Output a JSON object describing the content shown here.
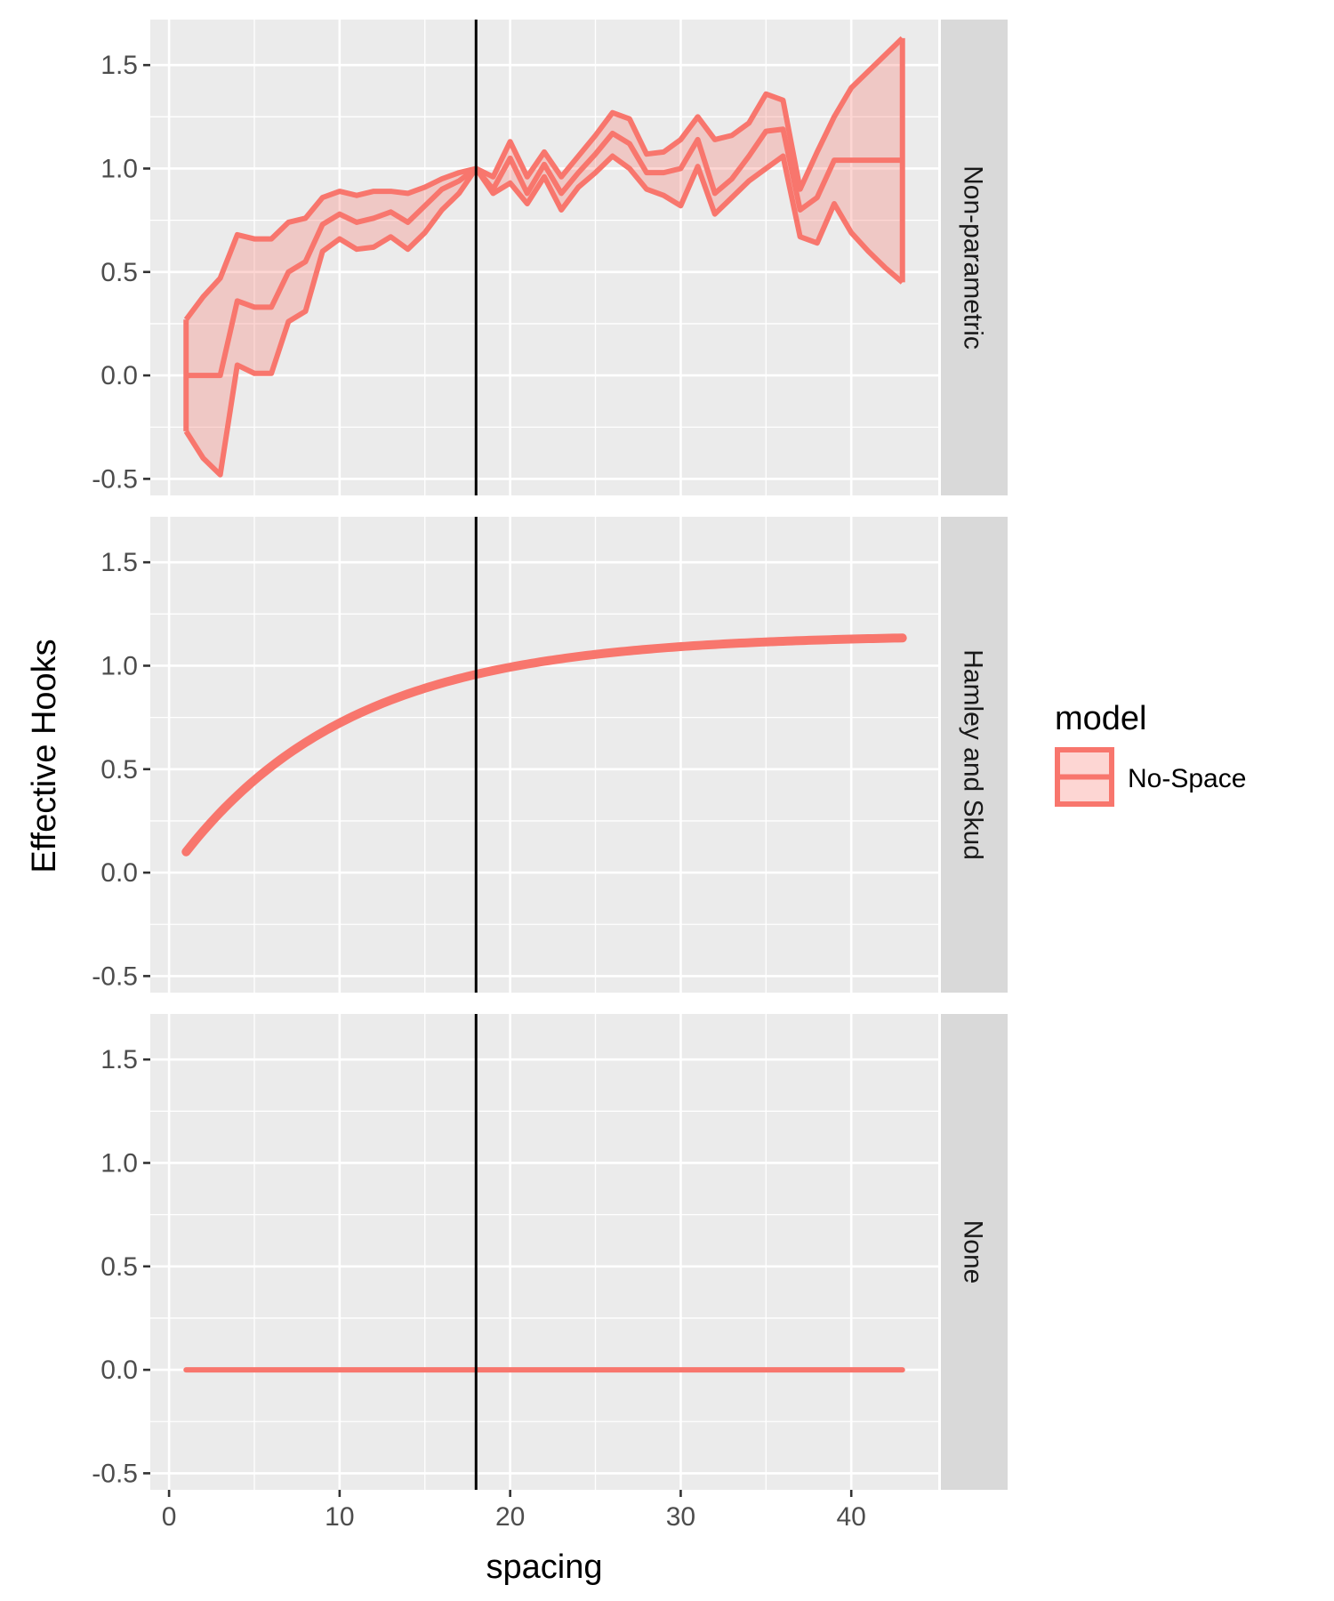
{
  "chart_data": {
    "type": "line",
    "xlabel": "spacing",
    "ylabel": "Effective Hooks",
    "xlim": [
      -1.1,
      45.1
    ],
    "ylim": [
      -0.58,
      1.72
    ],
    "x_ticks": [
      0,
      10,
      20,
      30,
      40
    ],
    "x_tick_labels": [
      "0",
      "10",
      "20",
      "30",
      "40"
    ],
    "y_ticks": [
      -0.5,
      0.0,
      0.5,
      1.0,
      1.5
    ],
    "y_tick_labels": [
      "-0.5",
      "0.0",
      "0.5",
      "1.0",
      "1.5"
    ],
    "reference_line_x": 18,
    "grid": true,
    "legend": {
      "title": "model",
      "position": "right",
      "entries": [
        {
          "label": "No-Space",
          "color": "#F8766D"
        }
      ]
    },
    "facets": [
      {
        "label": "Non-parametric",
        "x": [
          1,
          2,
          3,
          4,
          5,
          6,
          7,
          8,
          9,
          10,
          11,
          12,
          13,
          14,
          15,
          16,
          17,
          18,
          19,
          20,
          21,
          22,
          23,
          24,
          25,
          26,
          27,
          28,
          29,
          30,
          31,
          32,
          33,
          34,
          35,
          36,
          37,
          38,
          39,
          40,
          41,
          42,
          43
        ],
        "mean": [
          0.0,
          0.0,
          0.0,
          0.36,
          0.33,
          0.33,
          0.5,
          0.55,
          0.73,
          0.78,
          0.74,
          0.76,
          0.79,
          0.74,
          0.82,
          0.9,
          0.94,
          1.0,
          0.9,
          1.05,
          0.88,
          1.02,
          0.88,
          0.98,
          1.07,
          1.17,
          1.12,
          0.98,
          0.98,
          1.0,
          1.14,
          0.88,
          0.95,
          1.06,
          1.18,
          1.19,
          0.8,
          0.86,
          1.04,
          1.04,
          1.04,
          1.04,
          1.04
        ],
        "upper": [
          0.27,
          0.38,
          0.47,
          0.68,
          0.66,
          0.66,
          0.74,
          0.76,
          0.86,
          0.89,
          0.87,
          0.89,
          0.89,
          0.88,
          0.91,
          0.95,
          0.98,
          1.0,
          0.96,
          1.13,
          0.96,
          1.08,
          0.96,
          1.06,
          1.16,
          1.27,
          1.24,
          1.07,
          1.08,
          1.14,
          1.25,
          1.14,
          1.16,
          1.22,
          1.36,
          1.33,
          0.9,
          1.08,
          1.25,
          1.39,
          1.47,
          1.55,
          1.63
        ],
        "lower": [
          -0.27,
          -0.4,
          -0.48,
          0.05,
          0.01,
          0.01,
          0.26,
          0.31,
          0.6,
          0.66,
          0.61,
          0.62,
          0.67,
          0.61,
          0.69,
          0.8,
          0.88,
          1.0,
          0.88,
          0.93,
          0.83,
          0.96,
          0.8,
          0.91,
          0.98,
          1.06,
          1.0,
          0.9,
          0.87,
          0.82,
          1.01,
          0.78,
          0.86,
          0.94,
          1.0,
          1.06,
          0.67,
          0.64,
          0.83,
          0.69,
          0.6,
          0.52,
          0.45
        ]
      },
      {
        "label": "Hamley and Skud",
        "curve": {
          "function": "1.15 - 1.16 * exp(-0.1 * x)",
          "x_from": 1,
          "x_to": 43
        }
      },
      {
        "label": "None",
        "constant": {
          "y": 0,
          "x_from": 1,
          "x_to": 43
        }
      }
    ]
  },
  "colors": {
    "series": "#F8766D",
    "ribbon": "#F8766D",
    "panel_bg": "#EBEBEB",
    "strip_bg": "#D9D9D9",
    "grid_major": "#FFFFFF",
    "reference_line": "#000000"
  }
}
